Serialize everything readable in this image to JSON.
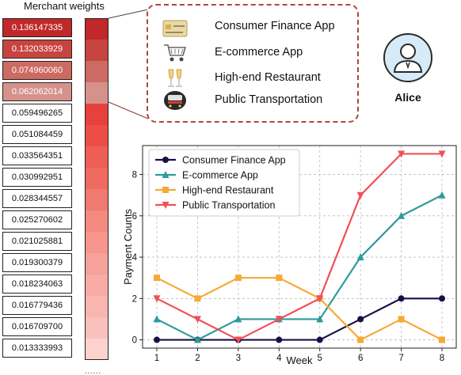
{
  "weights_panel": {
    "title": "Merchant weights",
    "values": [
      "0.136147335",
      "0.132033929",
      "0.074960060",
      "0.062062014",
      "0.059496265",
      "0.051084459",
      "0.033564351",
      "0.030992951",
      "0.028344557",
      "0.025270602",
      "0.021025881",
      "0.019300379",
      "0.018234063",
      "0.016779436",
      "0.016709700",
      "0.013333993"
    ],
    "footer": "......"
  },
  "heat_colors": [
    "#c0282a",
    "#c84440",
    "#cd6a62",
    "#d5928b",
    "#e8403c",
    "#ec4e46",
    "#ee5e55",
    "#ef6a61",
    "#f07a70",
    "#f3897f",
    "#f5958c",
    "#f6a199",
    "#f8aca5",
    "#f9b6b0",
    "#fac1bc",
    "#fcd2ce"
  ],
  "heat_table_fill": [
    "#c0282a",
    "#c84440",
    "#cd6a62",
    "#d5928b"
  ],
  "legend": {
    "items": [
      {
        "label": "Consumer Finance App",
        "icon": "credit-card-icon"
      },
      {
        "label": "E-commerce App",
        "icon": "shopping-cart-icon"
      },
      {
        "label": "High-end Restaurant",
        "icon": "champagne-glasses-icon"
      },
      {
        "label": "Public Transportation",
        "icon": "train-icon"
      }
    ]
  },
  "user": {
    "name": "Alice",
    "icon": "user-avatar-icon"
  },
  "chart_data": {
    "type": "line",
    "xlabel": "Week",
    "ylabel": "Payment Counts",
    "x": [
      1,
      2,
      3,
      4,
      5,
      6,
      7,
      8
    ],
    "ylim": [
      -0.4,
      9.4
    ],
    "yticks": [
      0,
      2,
      4,
      6,
      8
    ],
    "grid": true,
    "legend_position": "top-left",
    "series": [
      {
        "name": "Consumer Finance App",
        "values": [
          0,
          0,
          0,
          0,
          0,
          1,
          2,
          2
        ],
        "color": "#1a0f48",
        "marker": "circle"
      },
      {
        "name": "E-commerce App",
        "values": [
          1,
          0,
          1,
          1,
          1,
          4,
          6,
          7
        ],
        "color": "#2f9a9a",
        "marker": "triangle-up"
      },
      {
        "name": "High-end Restaurant",
        "values": [
          3,
          2,
          3,
          3,
          2,
          0,
          1,
          0
        ],
        "color": "#f6a934",
        "marker": "square"
      },
      {
        "name": "Public Transportation",
        "values": [
          2,
          1,
          0,
          1,
          2,
          7,
          9,
          9
        ],
        "color": "#f0505a",
        "marker": "triangle-down"
      }
    ]
  }
}
